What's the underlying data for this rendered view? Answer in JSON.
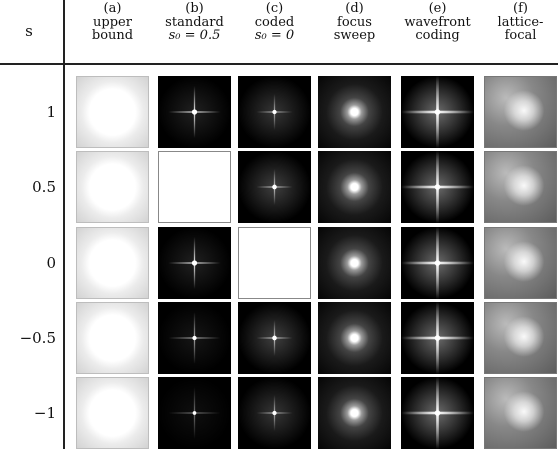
{
  "table": {
    "row_header": "s",
    "columns": [
      {
        "id": "a",
        "letter": "(a)",
        "line1": "upper",
        "line2": "bound"
      },
      {
        "id": "b",
        "letter": "(b)",
        "line1": "standard",
        "line2": "s₀ = 0.5"
      },
      {
        "id": "c",
        "letter": "(c)",
        "line1": "coded",
        "line2": "s₀ = 0"
      },
      {
        "id": "d",
        "letter": "(d)",
        "line1": "focus",
        "line2": "sweep"
      },
      {
        "id": "e",
        "letter": "(e)",
        "line1": "wavefront",
        "line2": "coding"
      },
      {
        "id": "f",
        "letter": "(f)",
        "line1": "lattice-",
        "line2": "focal"
      }
    ],
    "rows": [
      {
        "label": "1",
        "b_intensity": 0.9,
        "c_intensity": 0.6
      },
      {
        "label": "0.5",
        "b_intensity": 0,
        "c_intensity": 0.7
      },
      {
        "label": "0",
        "b_intensity": 0.9,
        "c_intensity": 0
      },
      {
        "label": "−0.5",
        "b_intensity": 0.6,
        "c_intensity": 0.7
      },
      {
        "label": "−1",
        "b_intensity": 0.4,
        "c_intensity": 0.6
      }
    ]
  },
  "colors": {
    "rule": "#222222",
    "background": "#ffffff"
  }
}
